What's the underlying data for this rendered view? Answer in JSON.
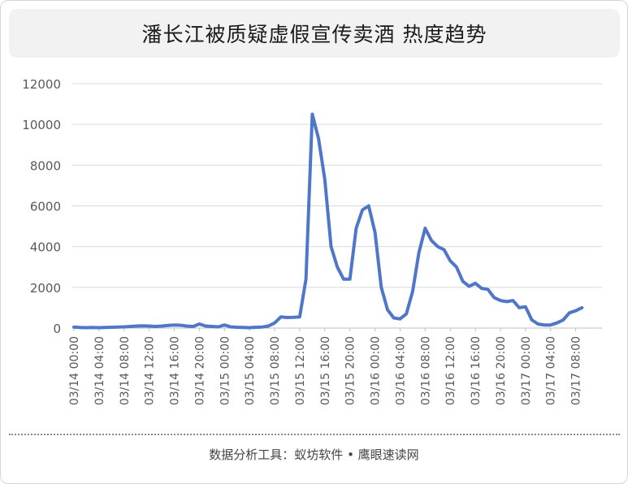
{
  "title": "潘长江被质疑虚假宣传卖酒 热度趋势",
  "footer": "数据分析工具：蚁坊软件 • 鹰眼速读网",
  "colors": {
    "line": "#4f76c8",
    "grid": "#d9d9d9",
    "title_bg": "#f2f2f2"
  },
  "chart_data": {
    "type": "line",
    "title": "潘长江被质疑虚假宣传卖酒 热度趋势",
    "xlabel": "",
    "ylabel": "",
    "ylim": [
      0,
      12000
    ],
    "y_ticks": [
      "0",
      "2000",
      "4000",
      "6000",
      "8000",
      "10000",
      "12000"
    ],
    "y_tick_values": [
      0,
      2000,
      4000,
      6000,
      8000,
      10000,
      12000
    ],
    "grid": true,
    "legend": "none",
    "x_tick_labels": [
      "03/14 00:00",
      "03/14 04:00",
      "03/14 08:00",
      "03/14 12:00",
      "03/14 16:00",
      "03/14 20:00",
      "03/15 00:00",
      "03/15 04:00",
      "03/15 08:00",
      "03/15 12:00",
      "03/15 16:00",
      "03/15 20:00",
      "03/16 00:00",
      "03/16 04:00",
      "03/16 08:00",
      "03/16 12:00",
      "03/16 16:00",
      "03/16 20:00",
      "03/17 00:00",
      "03/17 04:00",
      "03/17 08:00"
    ],
    "x_hours_per_point": 1,
    "values": [
      50,
      30,
      20,
      30,
      20,
      30,
      40,
      50,
      60,
      80,
      100,
      110,
      100,
      80,
      100,
      130,
      150,
      140,
      100,
      80,
      200,
      100,
      80,
      60,
      150,
      60,
      40,
      30,
      20,
      40,
      50,
      100,
      250,
      550,
      520,
      530,
      550,
      2400,
      10500,
      9300,
      7300,
      4000,
      3000,
      2400,
      2400,
      4900,
      5800,
      6000,
      4700,
      2000,
      900,
      500,
      450,
      700,
      1800,
      3700,
      4900,
      4300,
      4000,
      3850,
      3300,
      3000,
      2300,
      2050,
      2200,
      1950,
      1900,
      1500,
      1350,
      1300,
      1350,
      1000,
      1050,
      400,
      200,
      150,
      150,
      250,
      400,
      750,
      850,
      1000
    ]
  }
}
